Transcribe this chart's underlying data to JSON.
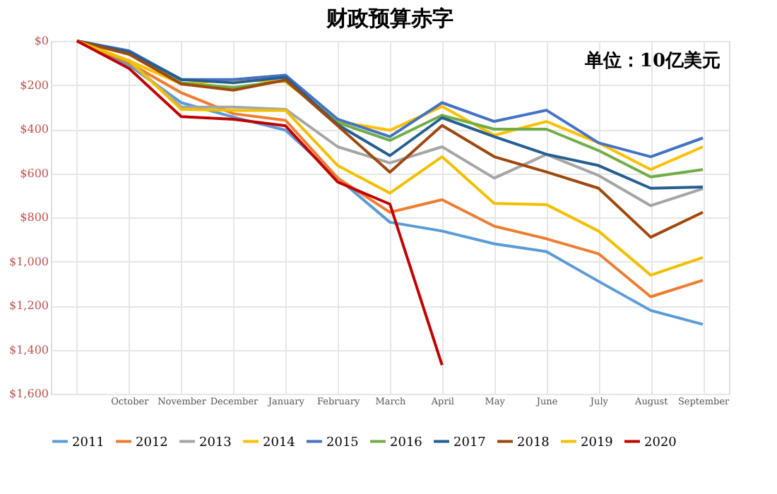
{
  "chart_data": {
    "type": "line",
    "title": "财政预算赤字",
    "annotations": [
      "单位：10亿美元"
    ],
    "categories": [
      null,
      "October",
      "November",
      "December",
      "January",
      "February",
      "March",
      "April",
      "May",
      "June",
      "July",
      "August",
      "September"
    ],
    "ylim": [
      1600,
      0
    ],
    "yticks": [
      {
        "value": 0,
        "label": "$0"
      },
      {
        "value": 200,
        "label": "$200"
      },
      {
        "value": 400,
        "label": "$400"
      },
      {
        "value": 600,
        "label": "$600"
      },
      {
        "value": 800,
        "label": "$800"
      },
      {
        "value": 1000,
        "label": "$1,000"
      },
      {
        "value": 1200,
        "label": "$1,200"
      },
      {
        "value": 1400,
        "label": "$1,400"
      },
      {
        "value": 1600,
        "label": "$1,600"
      }
    ],
    "grid": true,
    "legend": "bottom",
    "series": [
      {
        "name": "2011",
        "color": "#5b9bd5",
        "values": [
          0,
          110,
          280,
          345,
          405,
          622,
          822,
          862,
          920,
          955,
          1090,
          1222,
          1285
        ]
      },
      {
        "name": "2012",
        "color": "#ed7d31",
        "values": [
          0,
          100,
          235,
          330,
          360,
          622,
          777,
          720,
          840,
          897,
          965,
          1160,
          1085
        ]
      },
      {
        "name": "2013",
        "color": "#a5a5a5",
        "values": [
          0,
          90,
          300,
          300,
          310,
          480,
          553,
          480,
          622,
          515,
          610,
          747,
          670
        ]
      },
      {
        "name": "2014",
        "color": "#ffc000",
        "values": [
          0,
          90,
          195,
          175,
          185,
          365,
          405,
          297,
          428,
          365,
          462,
          583,
          480
        ]
      },
      {
        "name": "2015",
        "color": "#4472c4",
        "values": [
          0,
          45,
          175,
          175,
          155,
          355,
          434,
          280,
          365,
          314,
          462,
          525,
          440
        ]
      },
      {
        "name": "2016",
        "color": "#70ad47",
        "values": [
          0,
          60,
          190,
          211,
          180,
          370,
          451,
          337,
          400,
          400,
          497,
          617,
          583
        ]
      },
      {
        "name": "2017",
        "color": "#255e91",
        "values": [
          0,
          50,
          175,
          190,
          165,
          380,
          520,
          348,
          434,
          514,
          565,
          668,
          662
        ]
      },
      {
        "name": "2018",
        "color": "#9e480e",
        "values": [
          0,
          60,
          195,
          223,
          177,
          385,
          595,
          383,
          525,
          594,
          668,
          890,
          777
        ]
      },
      {
        "name": "2019",
        "color": "#f0c000",
        "values": [
          0,
          90,
          310,
          315,
          315,
          565,
          690,
          525,
          737,
          742,
          862,
          1062,
          982
        ]
      },
      {
        "name": "2020",
        "color": "#c00000",
        "values": [
          0,
          125,
          343,
          355,
          385,
          640,
          740,
          1470,
          null,
          null,
          null,
          null,
          null
        ]
      }
    ]
  }
}
